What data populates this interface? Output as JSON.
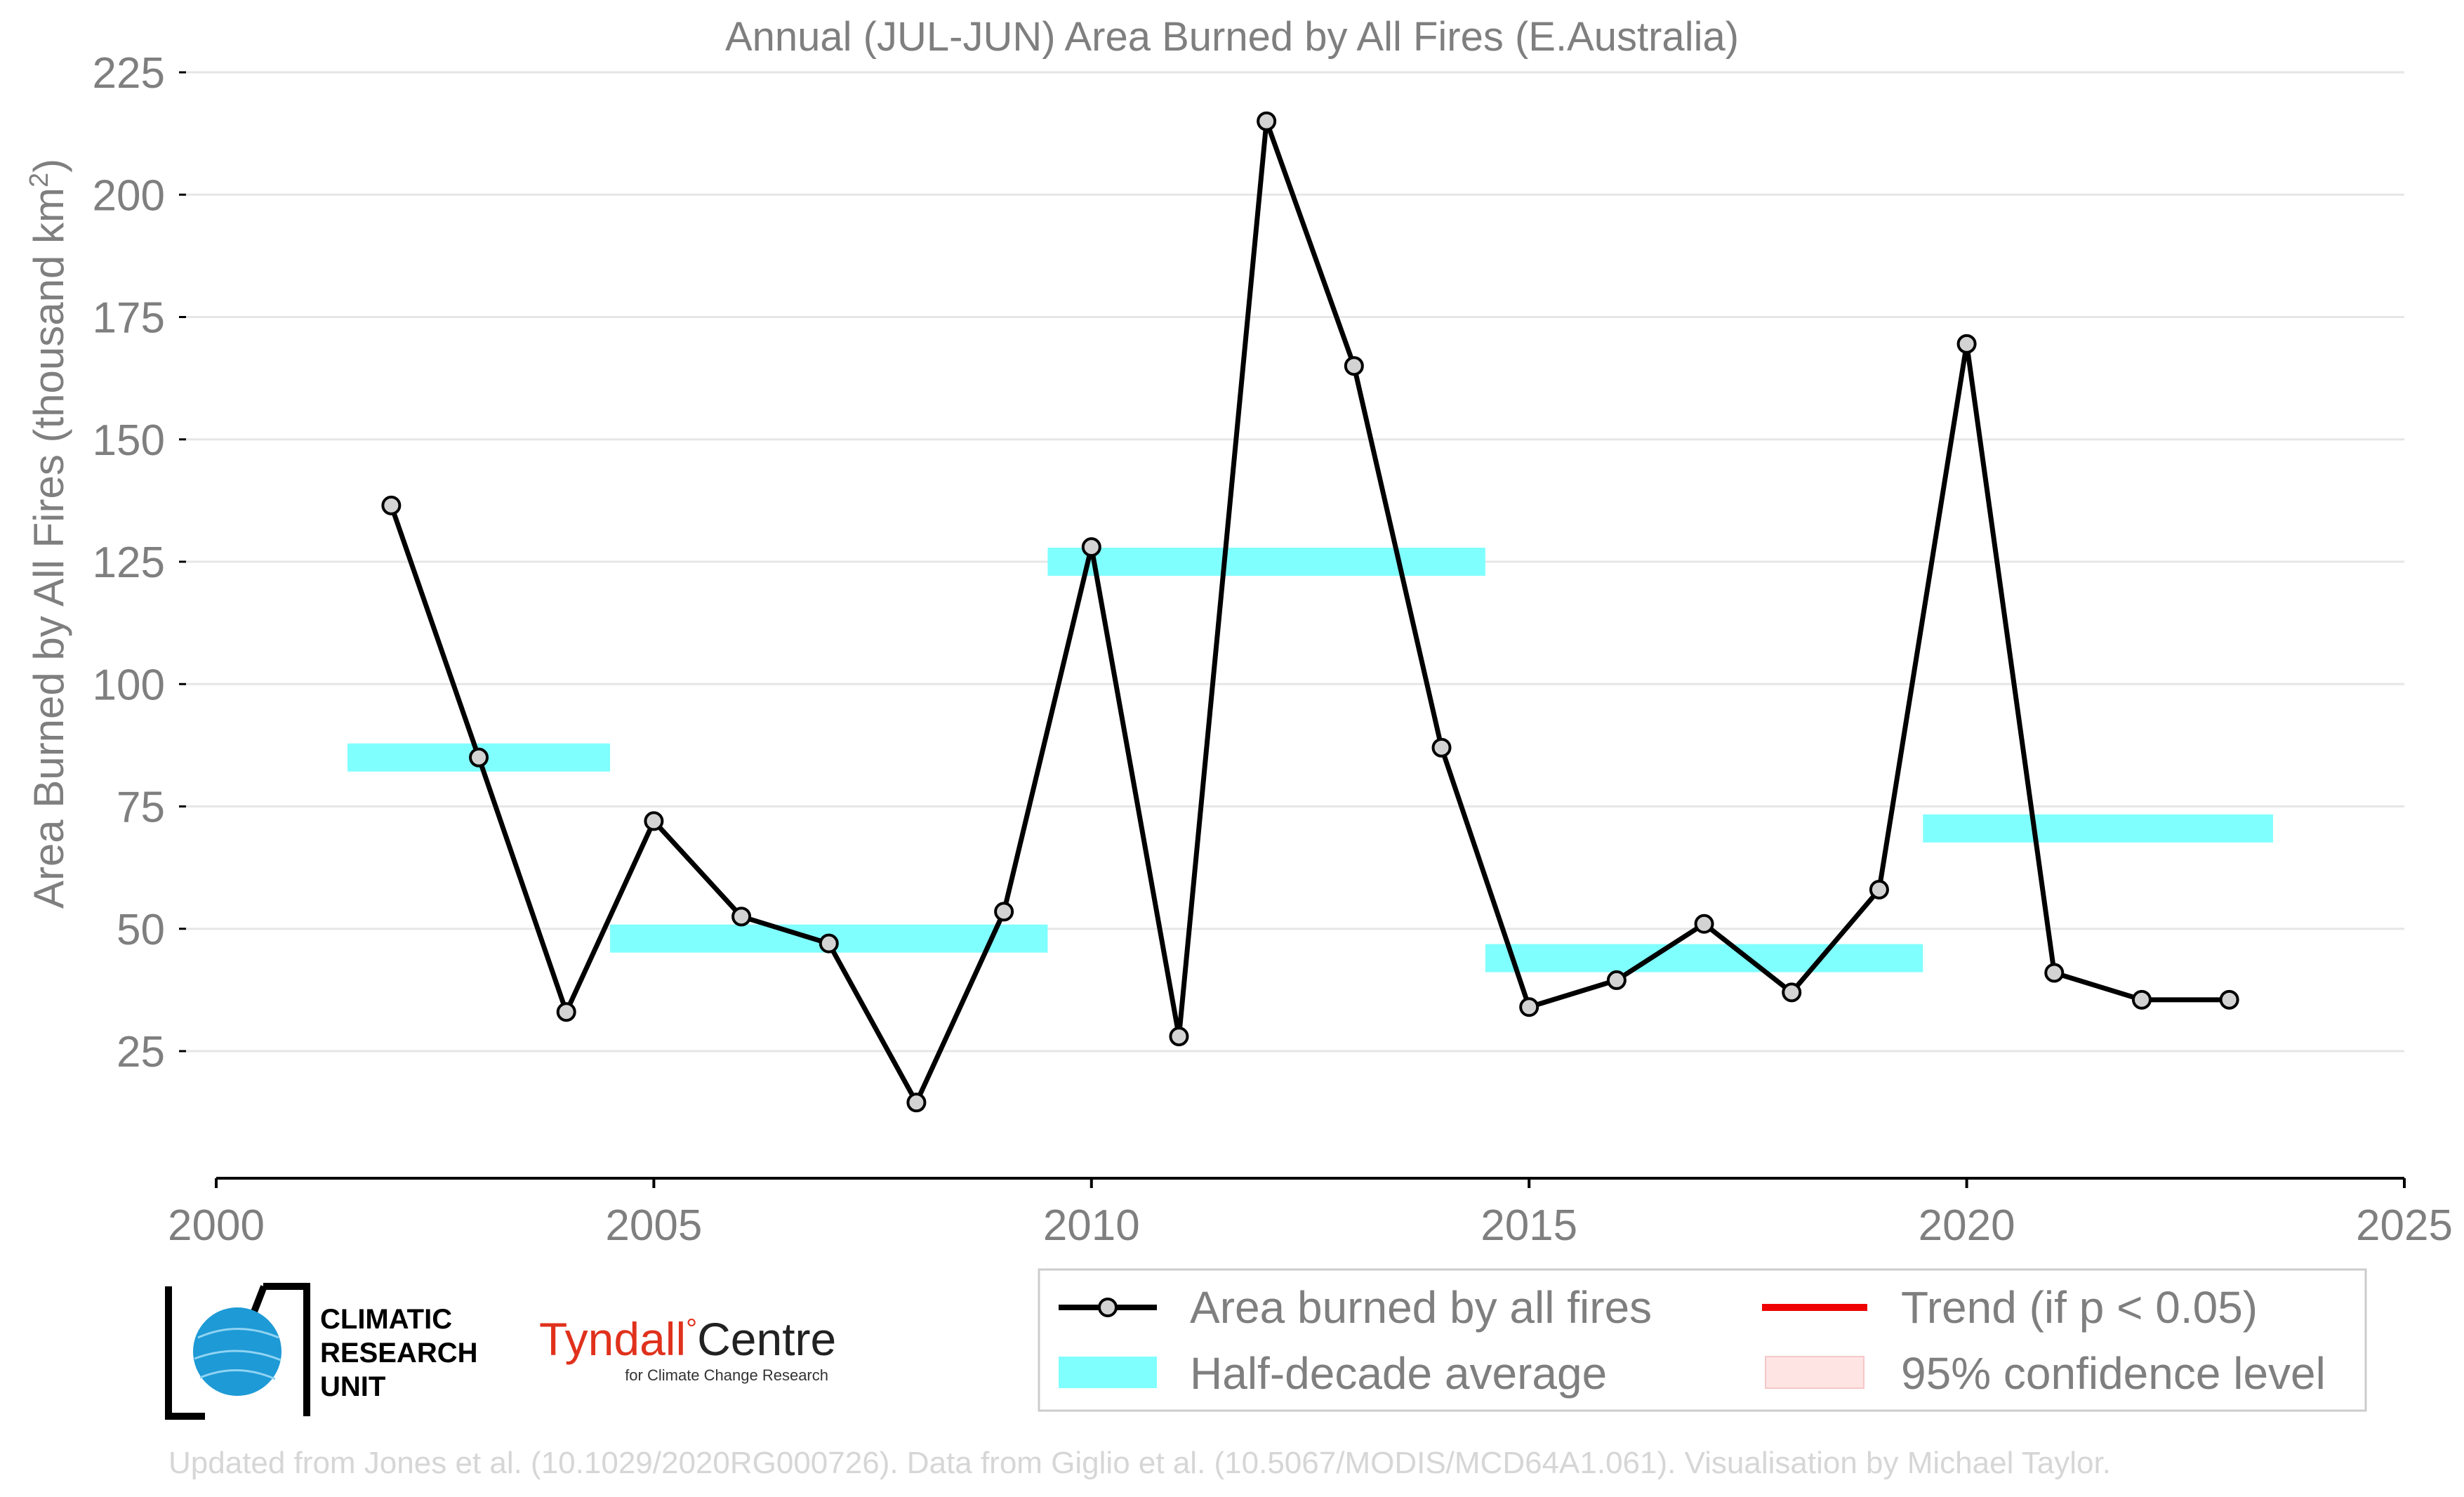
{
  "chart_data": {
    "type": "line",
    "title": "Annual (JUL-JUN) Area Burned by All Fires (E.Australia)",
    "ylabel": "Area Burned by All Fires (thousand km",
    "ylabel_superscript": "2",
    "ylabel_suffix": ")",
    "xlabel": "",
    "xlim": [
      2000,
      2025
    ],
    "ylim": [
      0,
      225
    ],
    "grid": true,
    "x_ticks": [
      2000,
      2005,
      2010,
      2015,
      2020,
      2025
    ],
    "y_ticks": [
      25,
      50,
      75,
      100,
      125,
      150,
      175,
      200,
      225
    ],
    "series": [
      {
        "name": "Area burned by all fires",
        "color": "#000000",
        "x": [
          2002,
          2003,
          2004,
          2005,
          2006,
          2007,
          2008,
          2009,
          2010,
          2011,
          2012,
          2013,
          2014,
          2015,
          2016,
          2017,
          2018,
          2019,
          2020,
          2021,
          2022,
          2023
        ],
        "y": [
          136.5,
          85,
          33,
          72,
          52.5,
          47,
          14.5,
          53.5,
          128,
          28,
          215,
          165,
          87,
          34,
          39.5,
          51,
          37,
          58,
          169.5,
          41,
          35.5,
          35.5
        ]
      }
    ],
    "half_decade_averages": [
      {
        "x_start": 2001.5,
        "x_end": 2004.5,
        "value": 85
      },
      {
        "x_start": 2004.5,
        "x_end": 2009.5,
        "value": 48
      },
      {
        "x_start": 2009.5,
        "x_end": 2014.5,
        "value": 125
      },
      {
        "x_start": 2014.5,
        "x_end": 2019.5,
        "value": 44
      },
      {
        "x_start": 2019.5,
        "x_end": 2023.5,
        "value": 70.5
      }
    ],
    "legend": {
      "placement": "bottom-right",
      "entries": [
        {
          "label": "Area burned by all fires",
          "kind": "line-marker",
          "color": "#000000"
        },
        {
          "label": "Trend (if p < 0.05)",
          "kind": "line",
          "color": "#ee0000"
        },
        {
          "label": "Half-decade average",
          "kind": "band",
          "color": "#80ffff"
        },
        {
          "label": "95% confidence level",
          "kind": "patch",
          "color": "#ffe4e4"
        }
      ]
    }
  },
  "logos": {
    "cru": [
      "CLIMATIC",
      "RESEARCH",
      "UNIT"
    ],
    "tyndall_main": "Tyndall",
    "tyndall_degree": "°",
    "tyndall_centre": "Centre",
    "tyndall_sub": "for Climate Change Research"
  },
  "footer": "Updated from Jones et al. (10.1029/2020RG000726). Data from Giglio et al. (10.5067/MODIS/MCD64A1.061). Visualisation by Michael Taylor.",
  "colors": {
    "band": "#80ffff",
    "marker_fill": "#d3d3d3",
    "grid": "#e6e6e6",
    "axis": "#000000"
  }
}
